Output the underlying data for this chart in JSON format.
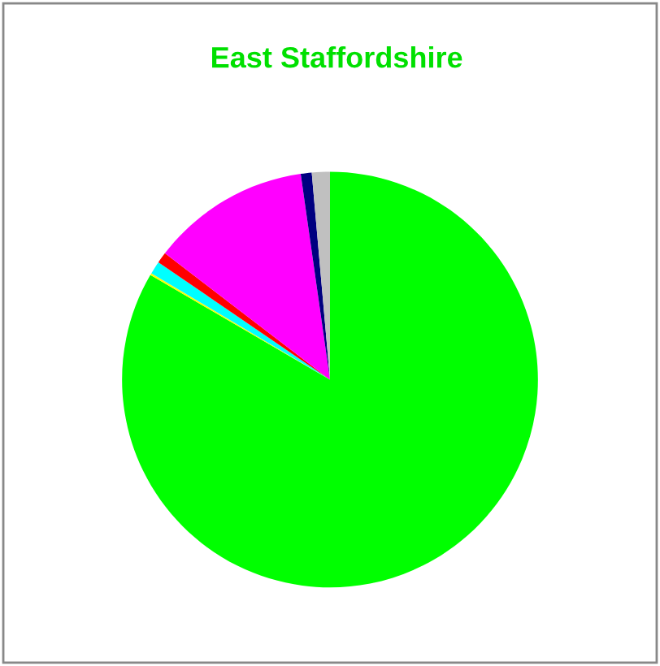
{
  "chart_data": {
    "type": "pie",
    "title": "East Staffordshire",
    "categories": [
      null,
      null,
      null,
      null,
      null,
      null,
      null
    ],
    "values": [
      83.4,
      0.15,
      1.0,
      0.85,
      12.35,
      0.85,
      1.4
    ],
    "colors": [
      "#00ff00",
      "#ffff00",
      "#00ffff",
      "#ff0000",
      "#ff00ff",
      "#000080",
      "#c0c0c0"
    ]
  }
}
